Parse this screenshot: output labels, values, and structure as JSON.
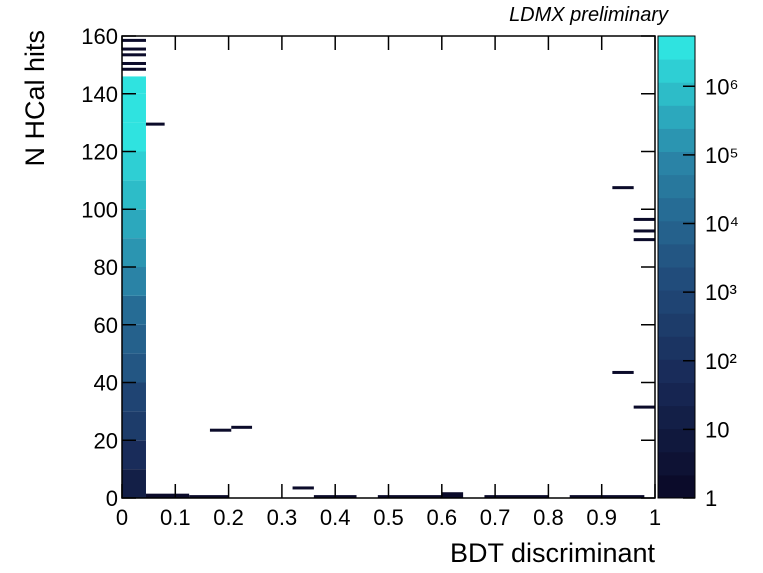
{
  "chart_data": {
    "type": "heatmap",
    "title": "LDMX preliminary",
    "x_label": "BDT discriminant",
    "y_label": "N HCal hits",
    "xlim": [
      0,
      1
    ],
    "xticks": [
      0,
      0.1,
      0.2,
      0.3,
      0.4,
      0.5,
      0.6,
      0.7,
      0.8,
      0.9,
      1
    ],
    "ylim": [
      0,
      160
    ],
    "yticks": [
      0,
      20,
      40,
      60,
      80,
      100,
      120,
      140,
      160
    ],
    "zlim": [
      1,
      5400000
    ],
    "zlog": true,
    "zticks": [
      1,
      10,
      {
        "value": 100,
        "label": "10²"
      },
      {
        "value": 1000,
        "label": "10³"
      },
      {
        "value": 10000,
        "label": "10⁴"
      },
      {
        "value": 100000,
        "label": "10⁵"
      },
      {
        "value": 1000000,
        "label": "10⁶"
      }
    ],
    "palette": [
      "#0b0b2a",
      "#182a58",
      "#22507f",
      "#2a86a8",
      "#2fe3e0"
    ],
    "cells": [
      {
        "x": [
          0,
          0.045
        ],
        "y": [
          0,
          10
        ],
        "value": 20
      },
      {
        "x": [
          0,
          0.045
        ],
        "y": [
          10,
          20
        ],
        "value": 80
      },
      {
        "x": [
          0,
          0.045
        ],
        "y": [
          20,
          30
        ],
        "value": 300
      },
      {
        "x": [
          0,
          0.045
        ],
        "y": [
          30,
          40
        ],
        "value": 1000
      },
      {
        "x": [
          0,
          0.045
        ],
        "y": [
          40,
          50
        ],
        "value": 3000
      },
      {
        "x": [
          0,
          0.045
        ],
        "y": [
          50,
          60
        ],
        "value": 8000
      },
      {
        "x": [
          0,
          0.045
        ],
        "y": [
          60,
          70
        ],
        "value": 20000
      },
      {
        "x": [
          0,
          0.045
        ],
        "y": [
          70,
          80
        ],
        "value": 60000
      },
      {
        "x": [
          0,
          0.045
        ],
        "y": [
          80,
          90
        ],
        "value": 150000
      },
      {
        "x": [
          0,
          0.045
        ],
        "y": [
          90,
          100
        ],
        "value": 400000
      },
      {
        "x": [
          0,
          0.045
        ],
        "y": [
          100,
          110
        ],
        "value": 800000
      },
      {
        "x": [
          0,
          0.045
        ],
        "y": [
          110,
          120
        ],
        "value": 1500000
      },
      {
        "x": [
          0,
          0.045
        ],
        "y": [
          120,
          130
        ],
        "value": 2500000
      },
      {
        "x": [
          0,
          0.045
        ],
        "y": [
          130,
          140
        ],
        "value": 4000000
      },
      {
        "x": [
          0,
          0.045
        ],
        "y": [
          140,
          146
        ],
        "value": 5000000
      },
      {
        "x": [
          0,
          0.045
        ],
        "y": [
          148,
          149
        ],
        "value": 1
      },
      {
        "x": [
          0,
          0.045
        ],
        "y": [
          150,
          151
        ],
        "value": 1
      },
      {
        "x": [
          0,
          0.045
        ],
        "y": [
          153,
          154
        ],
        "value": 1
      },
      {
        "x": [
          0,
          0.045
        ],
        "y": [
          155,
          156
        ],
        "value": 1
      },
      {
        "x": [
          0,
          0.045
        ],
        "y": [
          158,
          159
        ],
        "value": 1
      },
      {
        "x": [
          0.045,
          0.08
        ],
        "y": [
          129,
          130
        ],
        "value": 1
      },
      {
        "x": [
          0.045,
          0.126
        ],
        "y": [
          0,
          1.5
        ],
        "value": 2
      },
      {
        "x": [
          0.126,
          0.2
        ],
        "y": [
          0,
          1
        ],
        "value": 1
      },
      {
        "x": [
          0.165,
          0.205
        ],
        "y": [
          23,
          24
        ],
        "value": 1
      },
      {
        "x": [
          0.205,
          0.244
        ],
        "y": [
          24,
          25
        ],
        "value": 1
      },
      {
        "x": [
          0.32,
          0.36
        ],
        "y": [
          3,
          4
        ],
        "value": 1
      },
      {
        "x": [
          0.36,
          0.44
        ],
        "y": [
          0,
          1
        ],
        "value": 1
      },
      {
        "x": [
          0.48,
          0.6
        ],
        "y": [
          0,
          1
        ],
        "value": 1
      },
      {
        "x": [
          0.6,
          0.64
        ],
        "y": [
          0,
          2
        ],
        "value": 2
      },
      {
        "x": [
          0.68,
          0.8
        ],
        "y": [
          0,
          1
        ],
        "value": 1
      },
      {
        "x": [
          0.84,
          0.98
        ],
        "y": [
          0,
          1
        ],
        "value": 1
      },
      {
        "x": [
          0.92,
          0.96
        ],
        "y": [
          107,
          108
        ],
        "value": 1
      },
      {
        "x": [
          0.92,
          0.96
        ],
        "y": [
          43,
          44
        ],
        "value": 1
      },
      {
        "x": [
          0.96,
          1
        ],
        "y": [
          96,
          97
        ],
        "value": 1
      },
      {
        "x": [
          0.96,
          1
        ],
        "y": [
          92,
          93
        ],
        "value": 1
      },
      {
        "x": [
          0.96,
          1
        ],
        "y": [
          89,
          90
        ],
        "value": 1
      },
      {
        "x": [
          0.96,
          1
        ],
        "y": [
          31,
          32
        ],
        "value": 1
      }
    ]
  }
}
